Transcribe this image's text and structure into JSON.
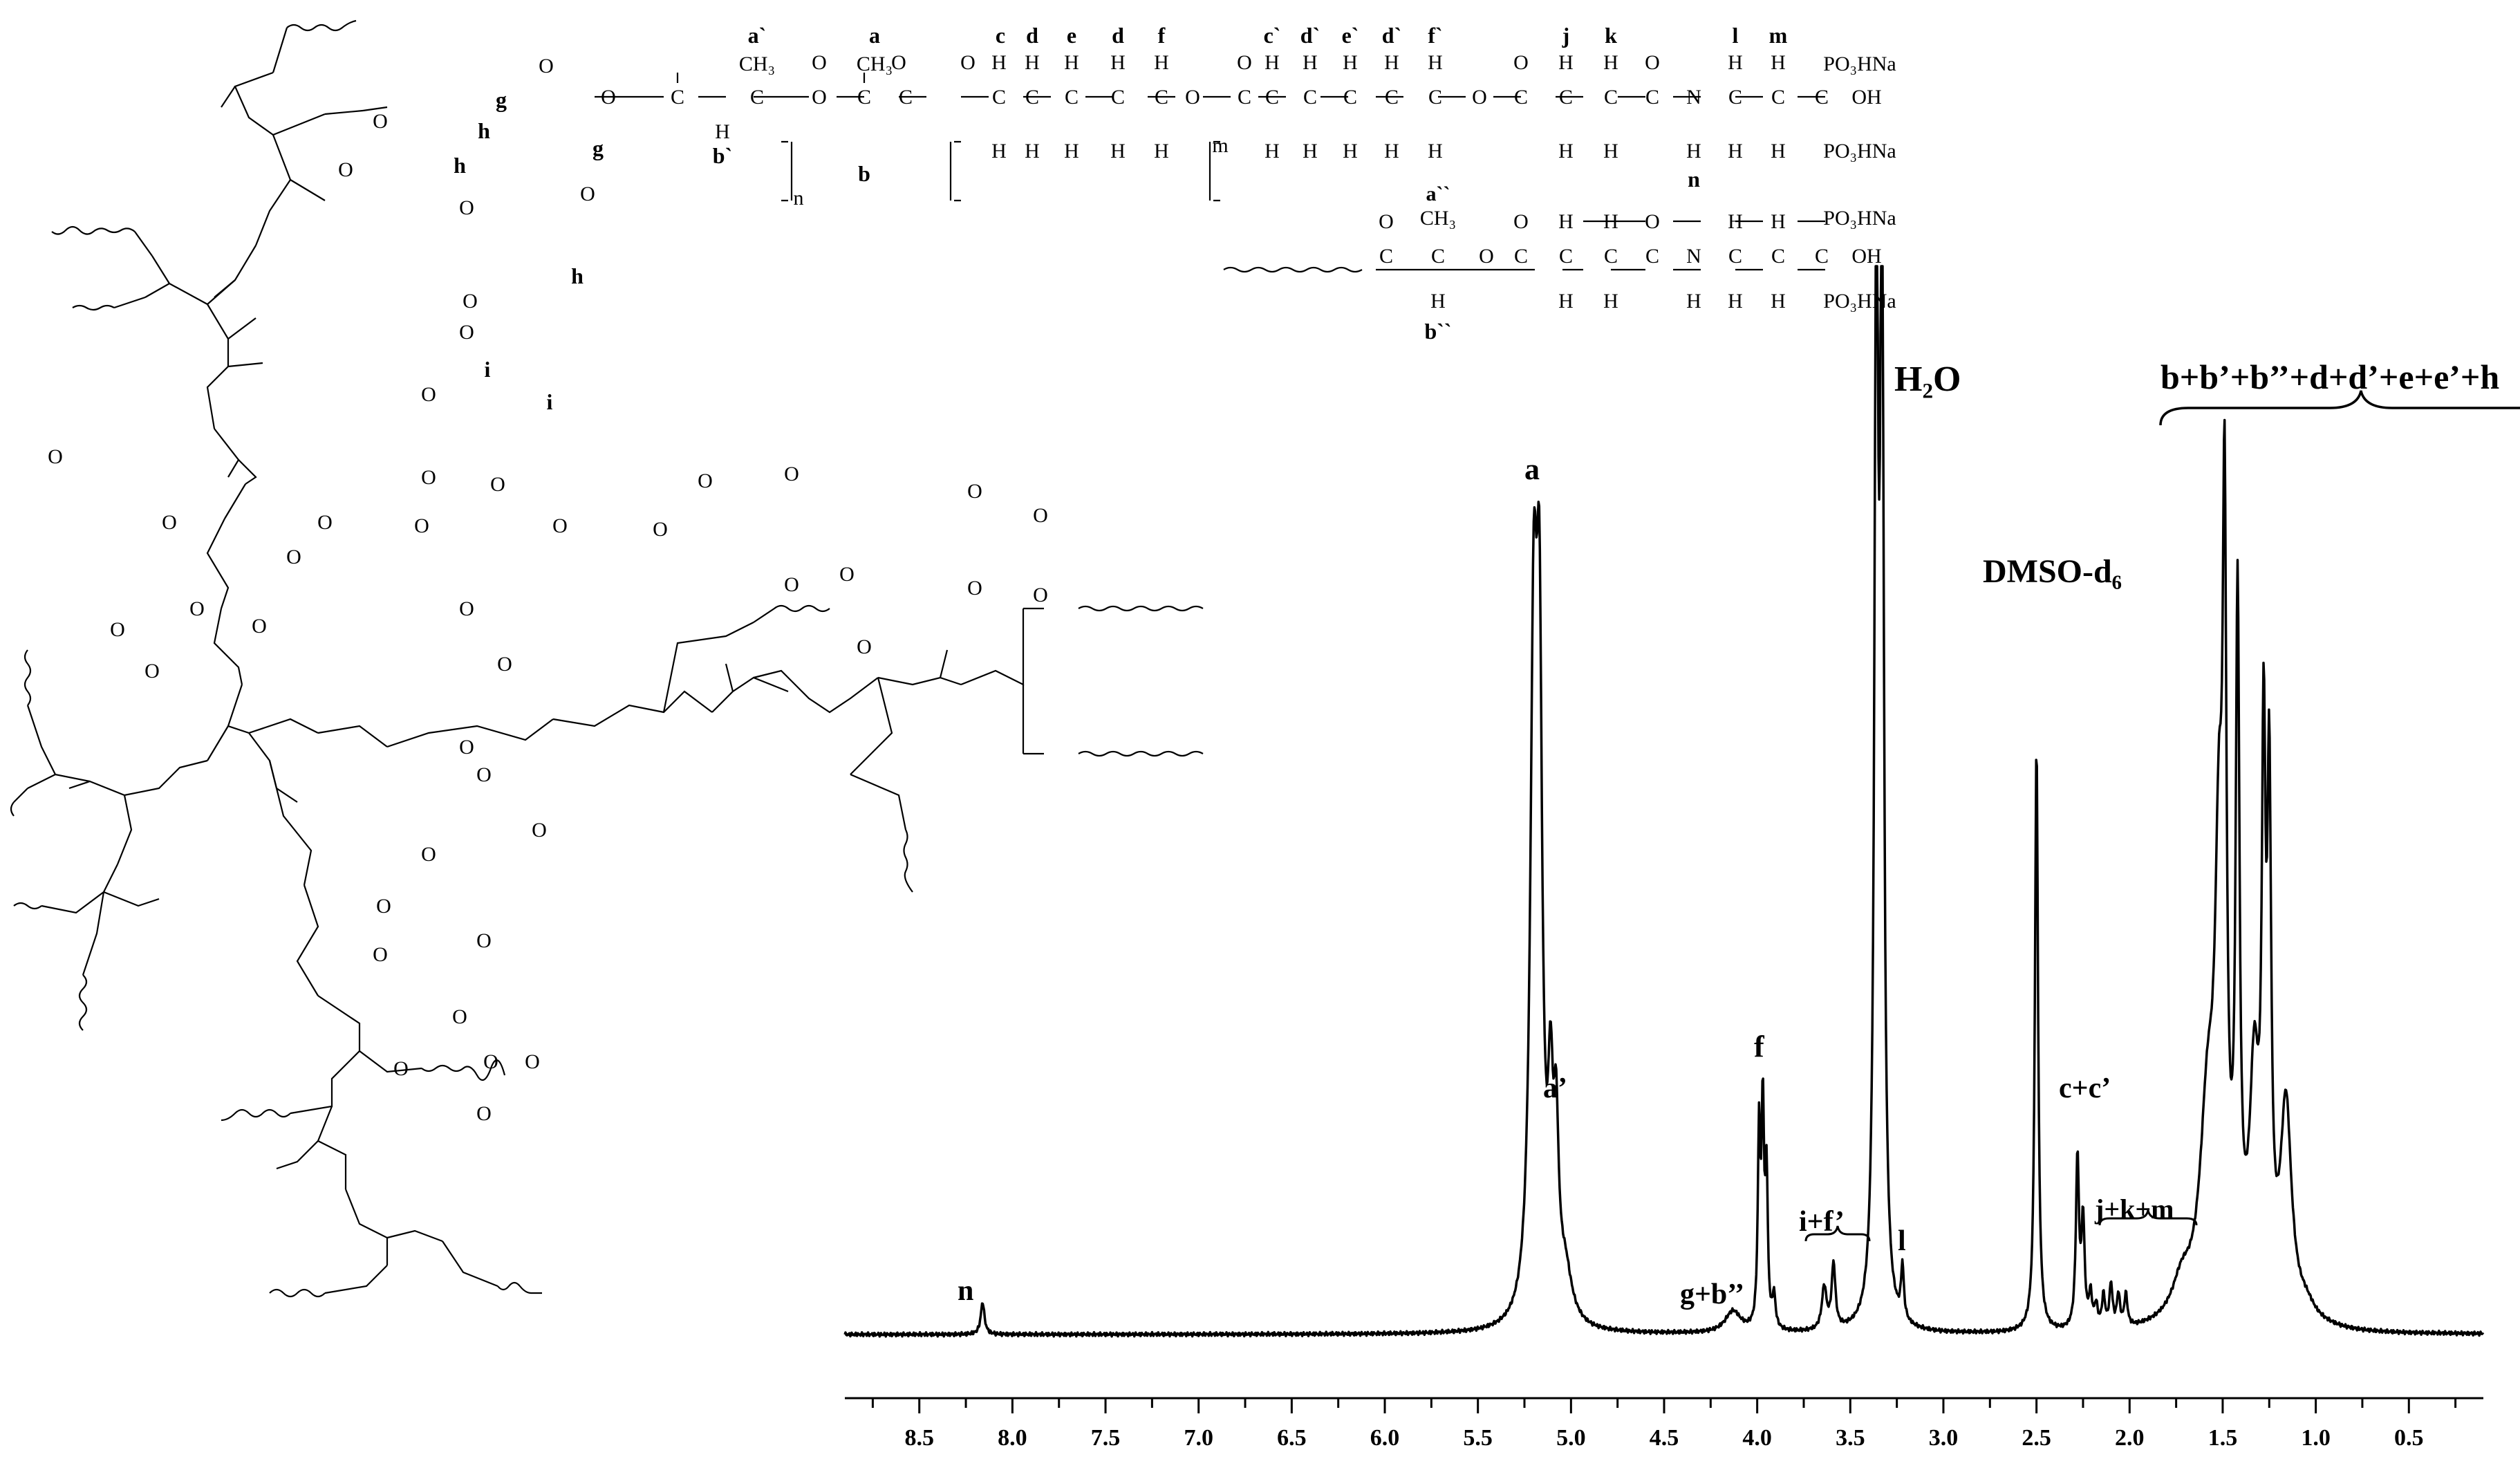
{
  "chart_data": {
    "type": "line",
    "title": "",
    "xlabel": "",
    "ylabel": "",
    "x_axis": {
      "reversed": true,
      "range": [
        8.9,
        0.1
      ],
      "ticks": [
        "8.5",
        "8.0",
        "7.5",
        "7.0",
        "6.5",
        "6.0",
        "5.5",
        "5.0",
        "4.5",
        "4.0",
        "3.5",
        "3.0",
        "2.5",
        "2.0",
        "1.5",
        "1.0",
        "0.5"
      ]
    },
    "grid": false,
    "series": [
      {
        "peaks": [
          {
            "x": 8.16,
            "h": 0.03,
            "w": 0.012
          },
          {
            "x": 5.2,
            "h": 0.61,
            "w": 0.022
          },
          {
            "x": 5.17,
            "h": 0.53,
            "w": 0.018
          },
          {
            "x": 5.11,
            "h": 0.17,
            "w": 0.016
          },
          {
            "x": 5.08,
            "h": 0.15,
            "w": 0.016
          },
          {
            "x": 5.03,
            "h": 0.04,
            "w": 0.04
          },
          {
            "x": 4.13,
            "h": 0.02,
            "w": 0.05
          },
          {
            "x": 3.99,
            "h": 0.18,
            "w": 0.008
          },
          {
            "x": 3.97,
            "h": 0.2,
            "w": 0.008
          },
          {
            "x": 3.95,
            "h": 0.14,
            "w": 0.008
          },
          {
            "x": 3.91,
            "h": 0.03,
            "w": 0.01
          },
          {
            "x": 3.64,
            "h": 0.04,
            "w": 0.015
          },
          {
            "x": 3.59,
            "h": 0.06,
            "w": 0.012
          },
          {
            "x": 3.36,
            "h": 1.0,
            "w": 0.012
          },
          {
            "x": 3.33,
            "h": 1.0,
            "w": 0.012
          },
          {
            "x": 3.22,
            "h": 0.05,
            "w": 0.009
          },
          {
            "x": 2.5,
            "h": 0.55,
            "w": 0.01
          },
          {
            "x": 2.28,
            "h": 0.16,
            "w": 0.01
          },
          {
            "x": 2.25,
            "h": 0.1,
            "w": 0.01
          },
          {
            "x": 2.21,
            "h": 0.03,
            "w": 0.01
          },
          {
            "x": 2.18,
            "h": 0.02,
            "w": 0.01
          },
          {
            "x": 2.14,
            "h": 0.03,
            "w": 0.01
          },
          {
            "x": 2.1,
            "h": 0.04,
            "w": 0.01
          },
          {
            "x": 2.06,
            "h": 0.03,
            "w": 0.01
          },
          {
            "x": 2.02,
            "h": 0.03,
            "w": 0.01
          },
          {
            "x": 1.72,
            "h": 0.03,
            "w": 0.06
          },
          {
            "x": 1.58,
            "h": 0.18,
            "w": 0.05
          },
          {
            "x": 1.52,
            "h": 0.36,
            "w": 0.025
          },
          {
            "x": 1.49,
            "h": 0.62,
            "w": 0.012
          },
          {
            "x": 1.42,
            "h": 0.62,
            "w": 0.012
          },
          {
            "x": 1.33,
            "h": 0.2,
            "w": 0.03
          },
          {
            "x": 1.28,
            "h": 0.47,
            "w": 0.012
          },
          {
            "x": 1.25,
            "h": 0.44,
            "w": 0.012
          },
          {
            "x": 1.16,
            "h": 0.19,
            "w": 0.035
          },
          {
            "x": 1.05,
            "h": 0.01,
            "w": 0.05
          }
        ]
      }
    ],
    "annotations": [
      {
        "text": "n",
        "x": 8.16
      },
      {
        "text": "a",
        "x": 5.19
      },
      {
        "text": "a’",
        "x": 5.07
      },
      {
        "text": "g+b’’",
        "x": 4.14
      },
      {
        "text": "f",
        "x": 3.98
      },
      {
        "text": "i+f’",
        "x": 3.61
      },
      {
        "text": "H₂O",
        "x": 3.22
      },
      {
        "text": "l",
        "x": 3.22
      },
      {
        "text": "DMSO-d₆",
        "x": 2.53
      },
      {
        "text": "c+c’",
        "x": 2.26
      },
      {
        "text": "j+k+m",
        "x": 2.07
      },
      {
        "text": "b+b’+b’’+d+d’+e+e’+h",
        "x": 1.27
      }
    ]
  },
  "structure": {
    "top_atoms_row1": [
      "a`",
      "a",
      "c",
      "d",
      "e",
      "d",
      "f",
      "c`",
      "d`",
      "e`",
      "d`",
      "f`",
      "j",
      "k",
      "l",
      "m"
    ],
    "ch3": "CH₃",
    "h": "H",
    "o": "O",
    "c": "C",
    "n_atom": "N",
    "oh": "OH",
    "po3hna": "PO₃HNa",
    "rep_n": "n",
    "rep_m": "m",
    "label_b_prime": "b`",
    "label_b": "b",
    "label_n": "n",
    "second_a": "a``",
    "second_b": "b``",
    "core_labels": [
      "g",
      "g",
      "h",
      "h",
      "h",
      "i",
      "i"
    ]
  }
}
